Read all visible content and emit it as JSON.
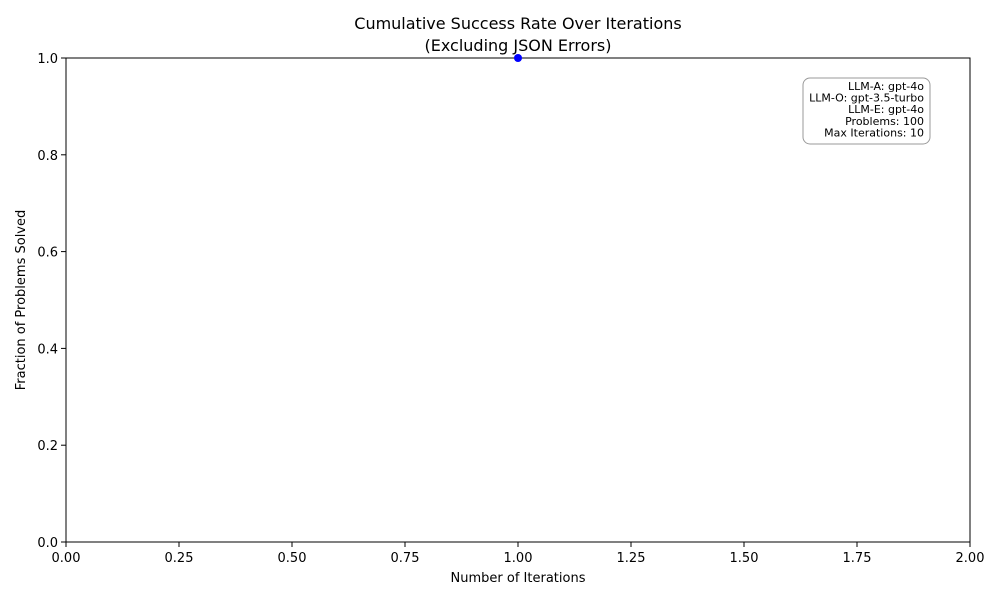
{
  "chart_data": {
    "type": "line",
    "title": "Cumulative Success Rate Over Iterations",
    "subtitle": "(Excluding JSON Errors)",
    "xlabel": "Number of Iterations",
    "ylabel": "Fraction of Problems Solved",
    "xlim": [
      0,
      2
    ],
    "ylim": [
      0,
      1
    ],
    "x_ticks": [
      "0.00",
      "0.25",
      "0.50",
      "0.75",
      "1.00",
      "1.25",
      "1.50",
      "1.75",
      "2.00"
    ],
    "y_ticks": [
      "0.0",
      "0.2",
      "0.4",
      "0.6",
      "0.8",
      "1.0"
    ],
    "grid": false,
    "series": [
      {
        "color": "#0000ff",
        "x": [
          1.0
        ],
        "y": [
          1.0
        ]
      }
    ],
    "info_box": {
      "placement": "top-right",
      "lines": [
        "LLM-A: gpt-4o",
        "LLM-O: gpt-3.5-turbo",
        "LLM-E: gpt-4o",
        "Problems: 100",
        "Max Iterations: 10"
      ]
    }
  }
}
